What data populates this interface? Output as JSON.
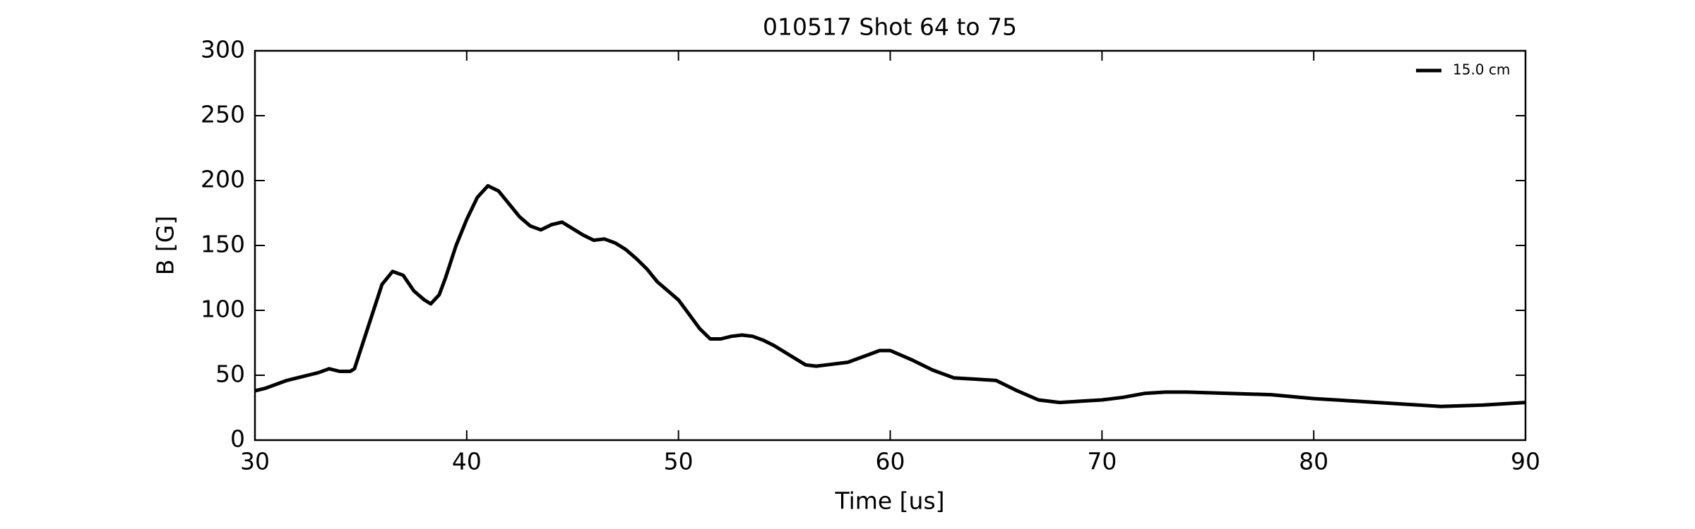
{
  "chart_data": {
    "type": "line",
    "title": "010517 Shot 64 to 75",
    "xlabel": "Time [us]",
    "ylabel": "B [G]",
    "xlim": [
      30,
      90
    ],
    "xticks": [
      30,
      40,
      50,
      60,
      70,
      80,
      90
    ],
    "ylim": [
      0,
      300
    ],
    "yticks": [
      0,
      50,
      100,
      150,
      200,
      250,
      300
    ],
    "grid": false,
    "legend": "upper right",
    "series": [
      {
        "name": "15.0 cm",
        "color": "#000000",
        "x": [
          30,
          30.5,
          31,
          31.5,
          32,
          32.5,
          33,
          33.5,
          34,
          34.5,
          34.7,
          35,
          35.5,
          36,
          36.5,
          37,
          37.5,
          38,
          38.3,
          38.7,
          39,
          39.5,
          40,
          40.5,
          41,
          41.5,
          42,
          42.5,
          43,
          43.5,
          44,
          44.5,
          45,
          45.5,
          46,
          46.5,
          47,
          47.5,
          48,
          48.5,
          49,
          49.5,
          50,
          50.5,
          51,
          51.5,
          52,
          52.5,
          53,
          53.5,
          54,
          54.5,
          55,
          55.5,
          56,
          56.5,
          57,
          58,
          59,
          59.5,
          60,
          61,
          62,
          63,
          64,
          65,
          66,
          67,
          68,
          69,
          70,
          71,
          72,
          73,
          74,
          76,
          78,
          80,
          82,
          84,
          86,
          88,
          90
        ],
        "values": [
          38,
          40,
          43,
          46,
          48,
          50,
          52,
          55,
          53,
          53,
          55,
          70,
          95,
          120,
          130,
          127,
          115,
          108,
          105,
          112,
          125,
          150,
          170,
          187,
          196,
          192,
          182,
          172,
          165,
          162,
          166,
          168,
          163,
          158,
          154,
          155,
          152,
          147,
          140,
          132,
          122,
          115,
          108,
          97,
          86,
          78,
          78,
          80,
          81,
          80,
          77,
          73,
          68,
          63,
          58,
          57,
          58,
          60,
          66,
          69,
          69,
          62,
          54,
          48,
          47,
          46,
          38,
          31,
          29,
          30,
          31,
          33,
          36,
          37,
          37,
          36,
          35,
          32,
          30,
          28,
          26,
          27,
          29
        ]
      }
    ]
  }
}
